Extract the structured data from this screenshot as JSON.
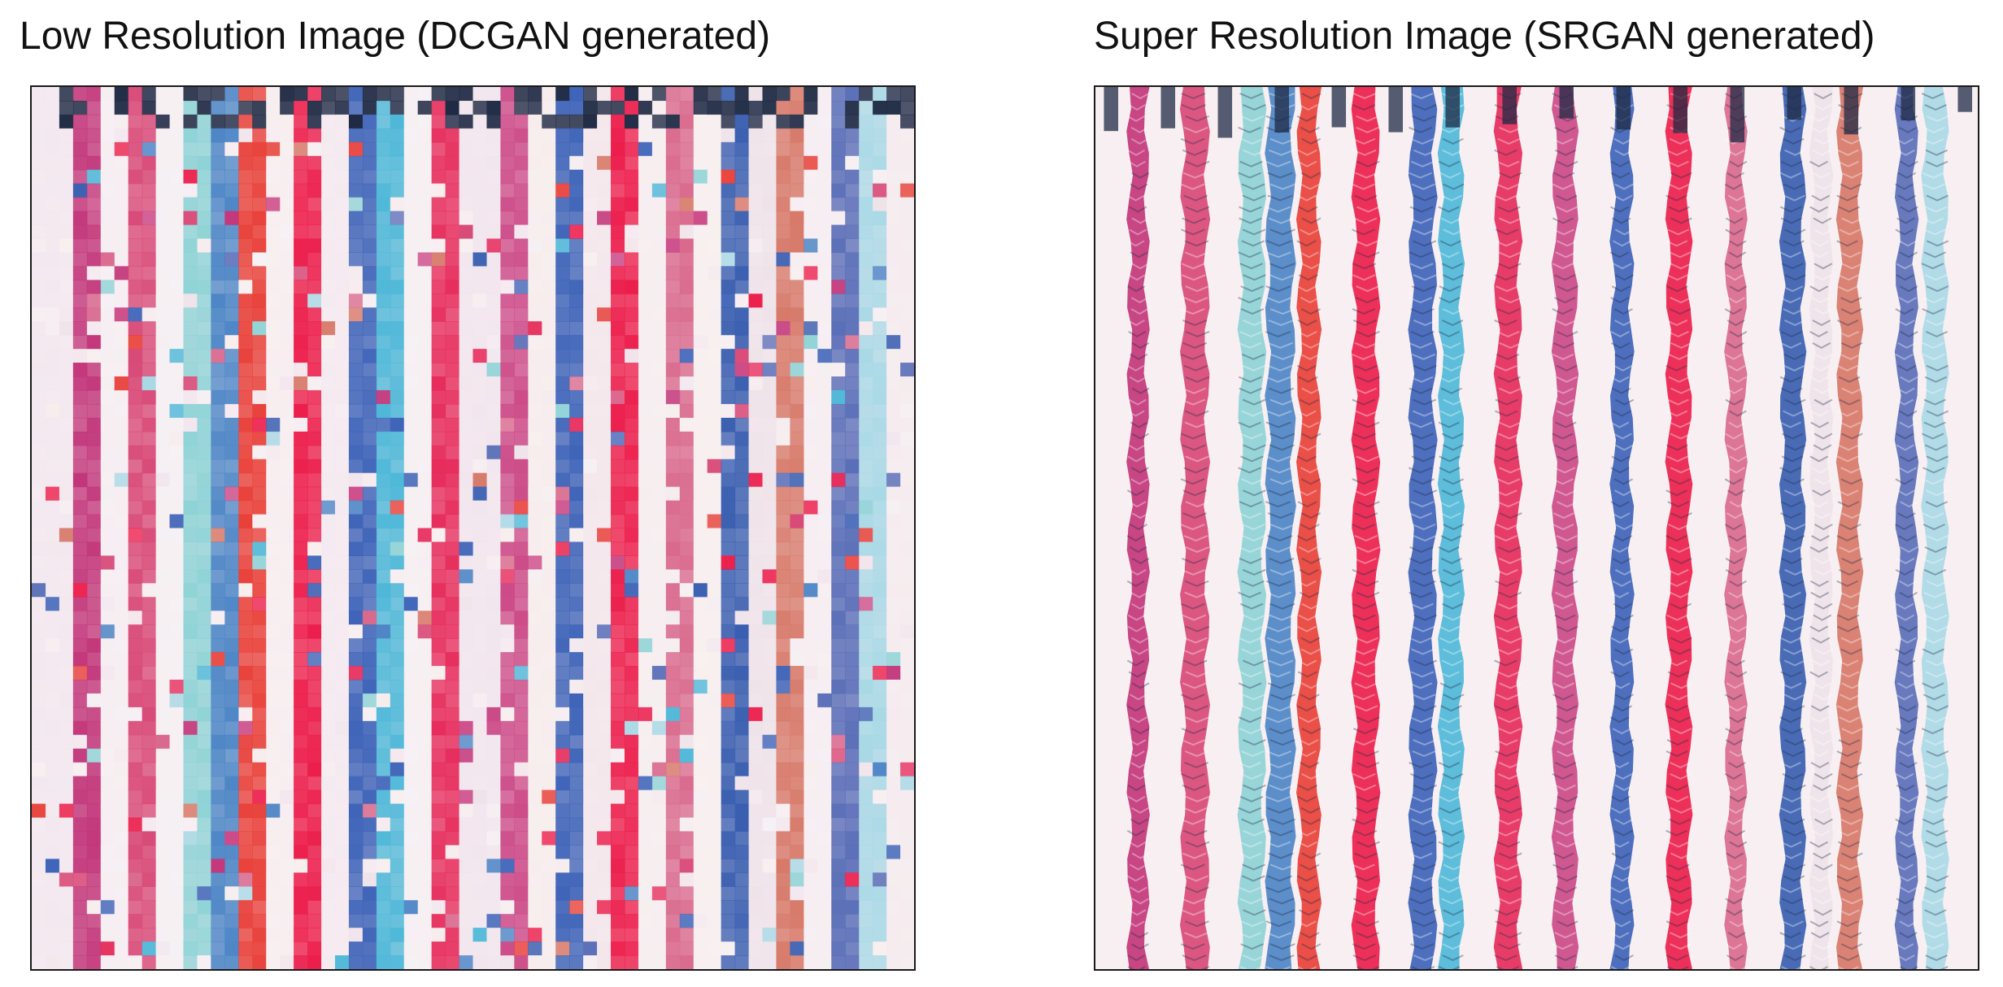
{
  "panels": {
    "left": {
      "title": "Low Resolution Image (DCGAN generated)"
    },
    "right": {
      "title": "Super Resolution Image (SRGAN generated)"
    }
  },
  "colors": {
    "background": "#ffffff",
    "frame_border": "#1a1a1a",
    "title_text": "#111111",
    "stripe_palette": [
      "#f8eef2",
      "#ec1f4c",
      "#e8413a",
      "#3f64b8",
      "#4fb8d8",
      "#8fd3d6",
      "#b2306a",
      "#1f2a44",
      "#cc4b88",
      "#d77a6a"
    ]
  }
}
